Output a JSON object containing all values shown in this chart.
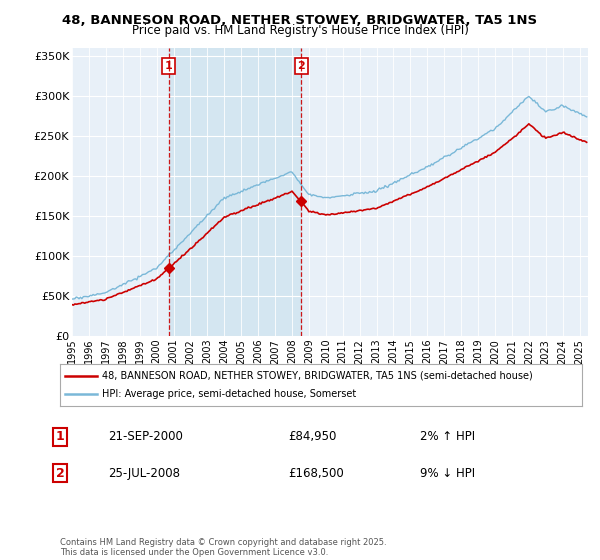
{
  "title": "48, BANNESON ROAD, NETHER STOWEY, BRIDGWATER, TA5 1NS",
  "subtitle": "Price paid vs. HM Land Registry's House Price Index (HPI)",
  "ylabel_ticks": [
    "£0",
    "£50K",
    "£100K",
    "£150K",
    "£200K",
    "£250K",
    "£300K",
    "£350K"
  ],
  "ytick_values": [
    0,
    50000,
    100000,
    150000,
    200000,
    250000,
    300000,
    350000
  ],
  "ylim": [
    0,
    360000
  ],
  "xlim_start": 1995.0,
  "xlim_end": 2025.5,
  "sale1_year": 2000.72,
  "sale1_price": 84950,
  "sale2_year": 2008.56,
  "sale2_price": 168500,
  "sale1_label": "1",
  "sale2_label": "2",
  "sale1_date": "21-SEP-2000",
  "sale1_amount": "£84,950",
  "sale1_hpi": "2% ↑ HPI",
  "sale2_date": "25-JUL-2008",
  "sale2_amount": "£168,500",
  "sale2_hpi": "9% ↓ HPI",
  "legend_line1": "48, BANNESON ROAD, NETHER STOWEY, BRIDGWATER, TA5 1NS (semi-detached house)",
  "legend_line2": "HPI: Average price, semi-detached house, Somerset",
  "footer": "Contains HM Land Registry data © Crown copyright and database right 2025.\nThis data is licensed under the Open Government Licence v3.0.",
  "hpi_color": "#7ab8d8",
  "price_color": "#cc0000",
  "vline_color": "#cc0000",
  "fill_color": "#d0e4f0",
  "background_color": "#e8f0f8",
  "grid_color": "#ffffff"
}
